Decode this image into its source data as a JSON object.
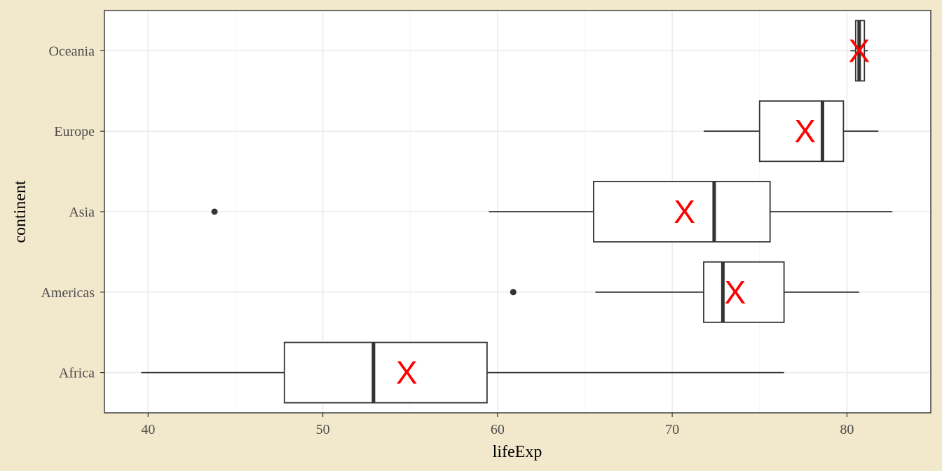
{
  "chart_data": {
    "type": "boxplot",
    "orientation": "horizontal",
    "xlabel": "lifeExp",
    "ylabel": "continent",
    "xlim": [
      37.5,
      84.8
    ],
    "x_ticks": [
      40,
      50,
      60,
      70,
      80
    ],
    "x_tick_labels": [
      "40",
      "50",
      "60",
      "70",
      "80"
    ],
    "grid": true,
    "mean_marker_label": "X",
    "mean_marker_color": "#ff0000",
    "categories": [
      "Africa",
      "Americas",
      "Asia",
      "Europe",
      "Oceania"
    ],
    "boxes": [
      {
        "category": "Africa",
        "min": 39.6,
        "q1": 47.8,
        "median": 52.9,
        "q3": 59.4,
        "max": 76.4,
        "mean": 54.8,
        "outliers": []
      },
      {
        "category": "Americas",
        "min": 65.6,
        "q1": 71.8,
        "median": 72.9,
        "q3": 76.4,
        "max": 80.7,
        "mean": 73.6,
        "outliers": [
          60.9
        ]
      },
      {
        "category": "Asia",
        "min": 59.5,
        "q1": 65.5,
        "median": 72.4,
        "q3": 75.6,
        "max": 82.6,
        "mean": 70.7,
        "outliers": [
          43.8
        ]
      },
      {
        "category": "Europe",
        "min": 71.8,
        "q1": 75.0,
        "median": 78.6,
        "q3": 79.8,
        "max": 81.8,
        "mean": 77.6,
        "outliers": []
      },
      {
        "category": "Oceania",
        "min": 80.2,
        "q1": 80.5,
        "median": 80.7,
        "q3": 81.0,
        "max": 81.2,
        "mean": 80.7,
        "outliers": []
      }
    ]
  }
}
